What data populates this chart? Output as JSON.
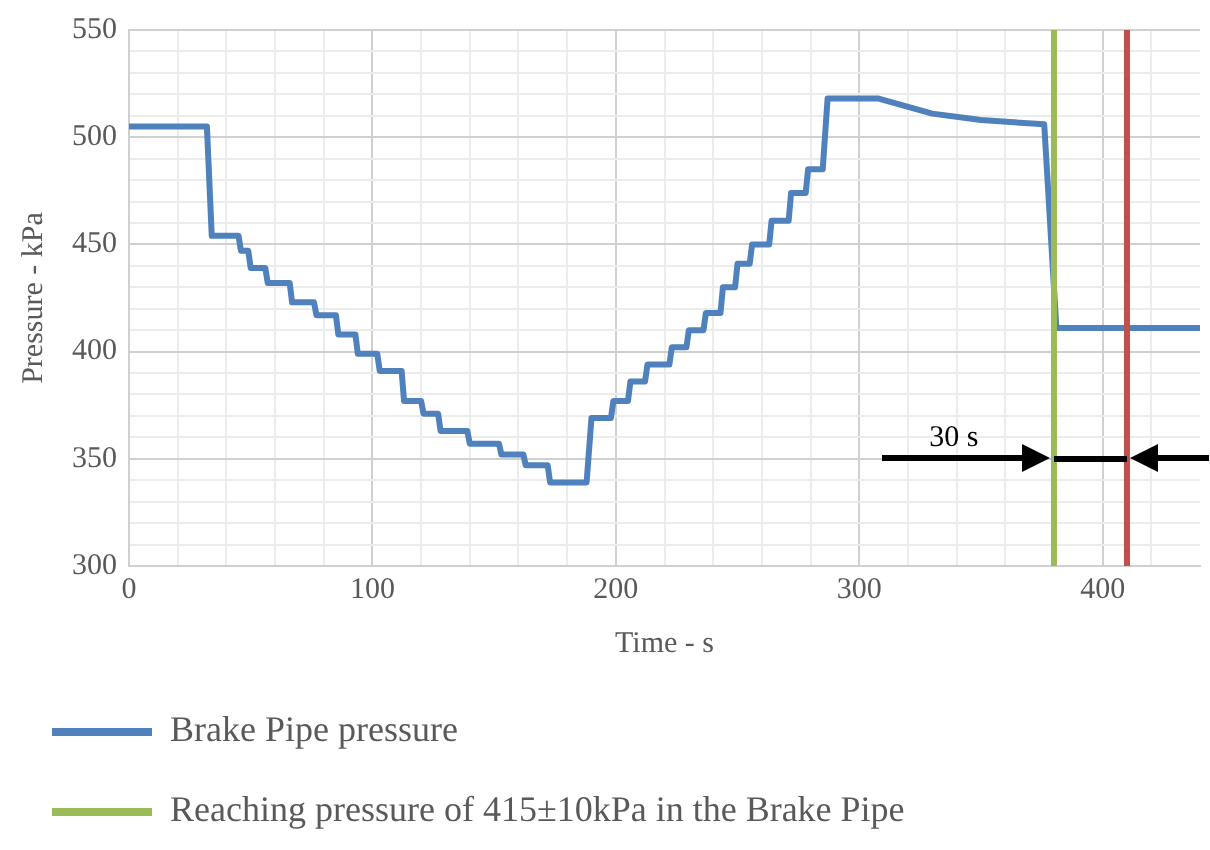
{
  "chart_data": {
    "type": "line",
    "xlabel": "Time - s",
    "ylabel": "Pressure - kPa",
    "xlim": [
      0,
      440
    ],
    "xticks": [
      0,
      {
        "value": 20,
        "label": null
      },
      {
        "value": 40,
        "label": null
      },
      {
        "value": 60,
        "label": null
      },
      {
        "value": 80,
        "label": null
      },
      100,
      {
        "value": 120,
        "label": null
      },
      {
        "value": 140,
        "label": null
      },
      {
        "value": 160,
        "label": null
      },
      {
        "value": 180,
        "label": null
      },
      200,
      {
        "value": 220,
        "label": null
      },
      {
        "value": 240,
        "label": null
      },
      {
        "value": 260,
        "label": null
      },
      {
        "value": 280,
        "label": null
      },
      300,
      {
        "value": 320,
        "label": null
      },
      {
        "value": 340,
        "label": null
      },
      {
        "value": 360,
        "label": null
      },
      {
        "value": 380,
        "label": null
      },
      400,
      {
        "value": 420,
        "label": null
      }
    ],
    "ylim": [
      300,
      550
    ],
    "yticks": [
      300,
      {
        "value": 310,
        "label": null
      },
      {
        "value": 320,
        "label": null
      },
      {
        "value": 330,
        "label": null
      },
      {
        "value": 340,
        "label": null
      },
      350,
      {
        "value": 360,
        "label": null
      },
      {
        "value": 370,
        "label": null
      },
      {
        "value": 380,
        "label": null
      },
      {
        "value": 390,
        "label": null
      },
      400,
      {
        "value": 410,
        "label": null
      },
      {
        "value": 420,
        "label": null
      },
      {
        "value": 430,
        "label": null
      },
      {
        "value": 440,
        "label": null
      },
      450,
      {
        "value": 460,
        "label": null
      },
      {
        "value": 470,
        "label": null
      },
      {
        "value": 480,
        "label": null
      },
      {
        "value": 490,
        "label": null
      },
      500,
      {
        "value": 510,
        "label": null
      },
      {
        "value": 520,
        "label": null
      },
      {
        "value": 530,
        "label": null
      },
      {
        "value": 540,
        "label": null
      },
      550
    ],
    "grid": true,
    "legend": "bottom",
    "marker": "none",
    "line_style": "solid",
    "series": [
      {
        "name": "Brake Pipe pressure",
        "color": "#4f81bd",
        "x": [
          0,
          32,
          34,
          45,
          46,
          49,
          50,
          56,
          57,
          66,
          67,
          76,
          77,
          85,
          86,
          93,
          94,
          102,
          103,
          112,
          113,
          120,
          121,
          127,
          128,
          139,
          140,
          152,
          153,
          162,
          163,
          172,
          173,
          188,
          190,
          198,
          199,
          205,
          206,
          212,
          213,
          222,
          223,
          229,
          230,
          236,
          237,
          243,
          244,
          249,
          250,
          255,
          256,
          263,
          264,
          271,
          272,
          278,
          279,
          285,
          287,
          308,
          330,
          350,
          376,
          381,
          440
        ],
        "values": [
          505,
          505,
          454,
          454,
          447,
          447,
          439,
          439,
          432,
          432,
          423,
          423,
          417,
          417,
          408,
          408,
          399,
          399,
          391,
          391,
          377,
          377,
          371,
          371,
          363,
          363,
          357,
          357,
          352,
          352,
          347,
          347,
          339,
          339,
          369,
          369,
          377,
          377,
          386,
          386,
          394,
          394,
          402,
          402,
          410,
          410,
          418,
          418,
          430,
          430,
          441,
          441,
          450,
          450,
          461,
          461,
          474,
          474,
          485,
          485,
          518,
          518,
          511,
          508,
          506,
          411,
          411
        ]
      }
    ],
    "ref_lines": [
      {
        "axis": "x",
        "value": 380,
        "label": "Reaching pressure of 415±10kPa in the Brake Pipe",
        "color": "#9bbb59"
      },
      {
        "axis": "x",
        "value": 410,
        "color": "#c0504d"
      }
    ],
    "annotations": [
      "30 s"
    ]
  }
}
